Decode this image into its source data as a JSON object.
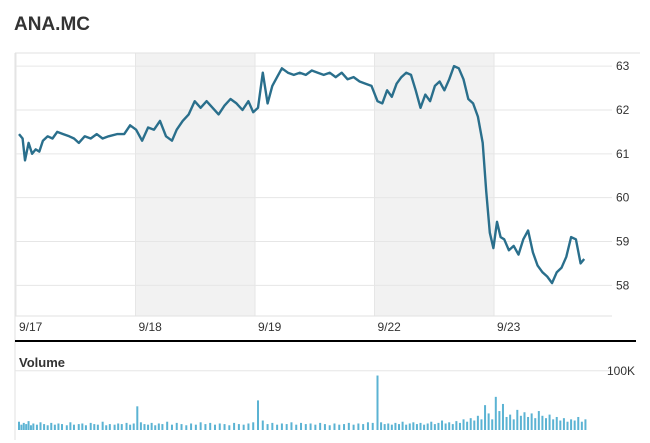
{
  "ticker": "ANA.MC",
  "volume_label": "Volume",
  "colors": {
    "line": "#2a6f8c",
    "volume_bar": "#5bb3d3",
    "shade": "#f2f2f2",
    "grid": "#e6e6e6",
    "axis": "#000000"
  },
  "chart_data": {
    "type": "line",
    "title": "ANA.MC",
    "xlabel": "",
    "ylabel": "",
    "ylim": [
      57.3,
      63.3
    ],
    "yticks": [
      58,
      59,
      60,
      61,
      62,
      63
    ],
    "xlim": [
      0,
      4.9
    ],
    "x_tick_labels": [
      "9/17",
      "9/18",
      "9/19",
      "9/22",
      "9/23"
    ],
    "x_tick_positions": [
      0,
      1,
      2,
      3,
      4
    ],
    "shaded_days": [
      1,
      3
    ],
    "grid": true,
    "series": [
      {
        "points": [
          [
            0.0,
            61.45
          ],
          [
            0.03,
            61.35
          ],
          [
            0.05,
            60.85
          ],
          [
            0.08,
            61.25
          ],
          [
            0.11,
            61.0
          ],
          [
            0.14,
            61.1
          ],
          [
            0.17,
            61.05
          ],
          [
            0.2,
            61.3
          ],
          [
            0.24,
            61.4
          ],
          [
            0.28,
            61.35
          ],
          [
            0.32,
            61.5
          ],
          [
            0.37,
            61.45
          ],
          [
            0.42,
            61.4
          ],
          [
            0.46,
            61.35
          ],
          [
            0.5,
            61.25
          ],
          [
            0.55,
            61.4
          ],
          [
            0.6,
            61.35
          ],
          [
            0.65,
            61.45
          ],
          [
            0.7,
            61.35
          ],
          [
            0.75,
            61.4
          ],
          [
            0.82,
            61.45
          ],
          [
            0.88,
            61.45
          ],
          [
            0.93,
            61.65
          ],
          [
            0.98,
            61.55
          ],
          [
            1.03,
            61.3
          ],
          [
            1.08,
            61.6
          ],
          [
            1.13,
            61.55
          ],
          [
            1.18,
            61.75
          ],
          [
            1.23,
            61.4
          ],
          [
            1.28,
            61.3
          ],
          [
            1.32,
            61.55
          ],
          [
            1.37,
            61.75
          ],
          [
            1.42,
            61.9
          ],
          [
            1.47,
            62.2
          ],
          [
            1.52,
            62.05
          ],
          [
            1.57,
            62.2
          ],
          [
            1.62,
            62.05
          ],
          [
            1.67,
            61.9
          ],
          [
            1.72,
            62.1
          ],
          [
            1.77,
            62.25
          ],
          [
            1.82,
            62.15
          ],
          [
            1.87,
            62.0
          ],
          [
            1.92,
            62.2
          ],
          [
            1.96,
            61.95
          ],
          [
            2.0,
            62.05
          ],
          [
            2.04,
            62.85
          ],
          [
            2.08,
            62.15
          ],
          [
            2.12,
            62.55
          ],
          [
            2.16,
            62.75
          ],
          [
            2.2,
            62.95
          ],
          [
            2.25,
            62.85
          ],
          [
            2.3,
            62.8
          ],
          [
            2.35,
            62.85
          ],
          [
            2.4,
            62.8
          ],
          [
            2.45,
            62.9
          ],
          [
            2.5,
            62.85
          ],
          [
            2.55,
            62.8
          ],
          [
            2.6,
            62.85
          ],
          [
            2.65,
            62.75
          ],
          [
            2.7,
            62.85
          ],
          [
            2.75,
            62.7
          ],
          [
            2.8,
            62.75
          ],
          [
            2.85,
            62.65
          ],
          [
            2.9,
            62.6
          ],
          [
            2.95,
            62.55
          ],
          [
            3.0,
            62.2
          ],
          [
            3.04,
            62.15
          ],
          [
            3.08,
            62.45
          ],
          [
            3.12,
            62.3
          ],
          [
            3.16,
            62.6
          ],
          [
            3.2,
            62.75
          ],
          [
            3.24,
            62.85
          ],
          [
            3.28,
            62.8
          ],
          [
            3.32,
            62.45
          ],
          [
            3.36,
            62.05
          ],
          [
            3.4,
            62.35
          ],
          [
            3.44,
            62.2
          ],
          [
            3.48,
            62.55
          ],
          [
            3.52,
            62.65
          ],
          [
            3.56,
            62.45
          ],
          [
            3.6,
            62.7
          ],
          [
            3.64,
            63.0
          ],
          [
            3.68,
            62.95
          ],
          [
            3.72,
            62.7
          ],
          [
            3.76,
            62.25
          ],
          [
            3.8,
            62.15
          ],
          [
            3.84,
            61.85
          ],
          [
            3.88,
            61.25
          ],
          [
            3.91,
            60.15
          ],
          [
            3.94,
            59.2
          ],
          [
            3.97,
            58.85
          ],
          [
            4.0,
            59.45
          ],
          [
            4.03,
            59.1
          ],
          [
            4.06,
            59.05
          ],
          [
            4.1,
            58.8
          ],
          [
            4.14,
            58.9
          ],
          [
            4.18,
            58.7
          ],
          [
            4.22,
            59.05
          ],
          [
            4.26,
            59.25
          ],
          [
            4.3,
            58.75
          ],
          [
            4.34,
            58.45
          ],
          [
            4.38,
            58.3
          ],
          [
            4.42,
            58.2
          ],
          [
            4.46,
            58.05
          ],
          [
            4.5,
            58.3
          ],
          [
            4.54,
            58.4
          ],
          [
            4.58,
            58.65
          ],
          [
            4.62,
            59.1
          ],
          [
            4.66,
            59.05
          ],
          [
            4.7,
            58.5
          ],
          [
            4.73,
            58.6
          ]
        ]
      }
    ],
    "volume": {
      "tick_label": "100K",
      "tick_value": 100000,
      "x": [
        0.0,
        0.02,
        0.04,
        0.06,
        0.08,
        0.1,
        0.12,
        0.15,
        0.18,
        0.21,
        0.24,
        0.27,
        0.3,
        0.33,
        0.36,
        0.4,
        0.43,
        0.46,
        0.5,
        0.53,
        0.56,
        0.6,
        0.63,
        0.66,
        0.7,
        0.73,
        0.76,
        0.8,
        0.83,
        0.86,
        0.9,
        0.93,
        0.96,
        0.99,
        1.02,
        1.05,
        1.08,
        1.11,
        1.14,
        1.17,
        1.2,
        1.24,
        1.28,
        1.32,
        1.36,
        1.4,
        1.44,
        1.48,
        1.52,
        1.56,
        1.6,
        1.64,
        1.68,
        1.72,
        1.76,
        1.8,
        1.84,
        1.88,
        1.92,
        1.96,
        2.0,
        2.04,
        2.08,
        2.12,
        2.16,
        2.2,
        2.24,
        2.28,
        2.32,
        2.36,
        2.4,
        2.44,
        2.48,
        2.52,
        2.56,
        2.6,
        2.64,
        2.68,
        2.72,
        2.76,
        2.8,
        2.84,
        2.88,
        2.92,
        2.96,
        3.0,
        3.03,
        3.06,
        3.09,
        3.12,
        3.15,
        3.18,
        3.21,
        3.24,
        3.27,
        3.3,
        3.33,
        3.36,
        3.39,
        3.42,
        3.45,
        3.48,
        3.51,
        3.54,
        3.57,
        3.6,
        3.63,
        3.66,
        3.69,
        3.72,
        3.75,
        3.78,
        3.81,
        3.84,
        3.87,
        3.9,
        3.93,
        3.96,
        3.99,
        4.02,
        4.05,
        4.08,
        4.11,
        4.14,
        4.17,
        4.2,
        4.23,
        4.26,
        4.29,
        4.32,
        4.35,
        4.38,
        4.41,
        4.44,
        4.47,
        4.5,
        4.53,
        4.56,
        4.59,
        4.62,
        4.65,
        4.68,
        4.71,
        4.74
      ],
      "values": [
        14000,
        9000,
        12000,
        10000,
        15000,
        8000,
        11000,
        9000,
        13000,
        10000,
        8000,
        12000,
        9000,
        11000,
        10000,
        8000,
        13000,
        9000,
        10000,
        11000,
        8000,
        12000,
        10000,
        9000,
        14000,
        8000,
        10000,
        9000,
        11000,
        10000,
        12000,
        9000,
        11000,
        40000,
        13000,
        10000,
        9000,
        12000,
        8000,
        11000,
        10000,
        14000,
        9000,
        12000,
        10000,
        8000,
        11000,
        9000,
        13000,
        10000,
        12000,
        9000,
        11000,
        10000,
        8000,
        12000,
        10000,
        9000,
        11000,
        13000,
        50000,
        16000,
        10000,
        12000,
        9000,
        11000,
        10000,
        13000,
        9000,
        12000,
        10000,
        11000,
        9000,
        12000,
        10000,
        8000,
        11000,
        9000,
        10000,
        12000,
        9000,
        11000,
        10000,
        13000,
        12000,
        92000,
        13000,
        10000,
        11000,
        9000,
        12000,
        10000,
        14000,
        9000,
        11000,
        13000,
        10000,
        12000,
        9000,
        11000,
        14000,
        10000,
        12000,
        16000,
        11000,
        13000,
        10000,
        15000,
        12000,
        18000,
        14000,
        20000,
        16000,
        24000,
        18000,
        42000,
        28000,
        18000,
        56000,
        32000,
        44000,
        22000,
        26000,
        18000,
        34000,
        24000,
        30000,
        22000,
        28000,
        20000,
        32000,
        24000,
        20000,
        26000,
        18000,
        22000,
        16000,
        20000,
        14000,
        18000,
        16000,
        22000,
        14000,
        18000
      ]
    }
  }
}
